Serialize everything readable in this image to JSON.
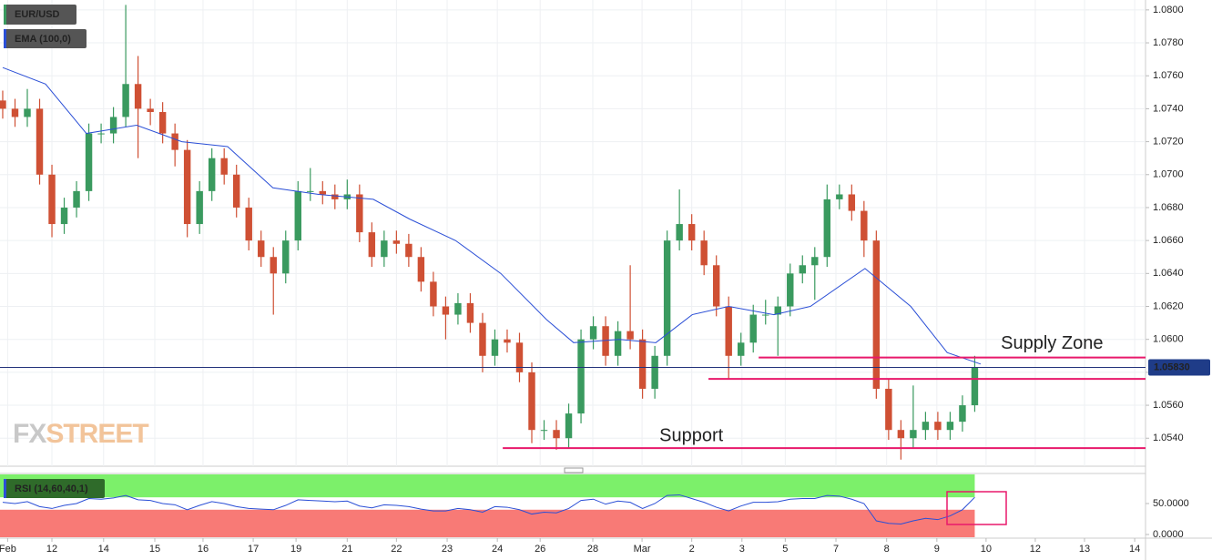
{
  "chart_data": [
    {
      "type": "candlestick",
      "title": "EUR/USD",
      "indicator": "EMA (100,0)",
      "logo": [
        "FX",
        "STREET"
      ],
      "annotations": [
        "Supply Zone",
        "Support"
      ],
      "up_color": "#3a9a5f",
      "down_color": "#cf5034",
      "x": [
        0,
        0.25,
        0.5,
        0.75,
        1,
        1.25,
        1.5,
        1.75,
        2,
        2.25,
        2.5,
        2.75,
        3,
        3.25,
        3.5,
        3.75,
        4,
        4.25,
        4.5,
        4.75,
        5,
        5.25,
        5.5,
        5.75,
        6,
        6.25,
        6.5,
        6.75,
        7,
        7.25,
        7.5,
        7.75,
        8,
        8.25,
        8.5,
        8.75,
        9,
        9.25,
        9.5,
        9.75,
        10,
        10.25,
        10.5,
        10.75,
        11,
        11.25,
        11.5,
        11.75,
        12,
        12.25,
        12.5,
        12.75,
        13,
        13.25,
        13.5,
        13.75,
        14,
        14.25,
        14.5,
        14.75,
        15,
        15.25,
        15.5,
        15.75,
        16,
        16.25,
        16.5,
        16.75,
        17,
        17.25,
        17.5,
        17.75,
        18,
        18.25,
        18.5,
        18.75,
        19,
        19.25,
        19.5,
        19.75
      ],
      "open": [
        1.0745,
        1.074,
        1.0735,
        1.074,
        1.07,
        1.067,
        1.068,
        1.069,
        1.0725,
        1.0725,
        1.0735,
        1.0755,
        1.074,
        1.0738,
        1.0725,
        1.0715,
        1.067,
        1.069,
        1.071,
        1.07,
        1.068,
        1.066,
        1.065,
        1.064,
        1.066,
        1.069,
        1.069,
        1.0688,
        1.0685,
        1.0688,
        1.0665,
        1.065,
        1.066,
        1.0658,
        1.065,
        1.0635,
        1.062,
        1.0615,
        1.0622,
        1.061,
        1.059,
        1.06,
        1.0598,
        1.058,
        1.0545,
        1.0545,
        1.054,
        1.0555,
        1.06,
        1.0608,
        1.059,
        1.0605,
        1.06,
        1.057,
        1.059,
        1.066,
        1.067,
        1.066,
        1.0645,
        1.062,
        1.059,
        1.0598,
        1.0615,
        1.0615,
        1.062,
        1.064,
        1.0645,
        1.065,
        1.0685,
        1.0688,
        1.0678,
        1.066,
        1.057,
        1.0545,
        1.054,
        1.0545,
        1.055,
        1.0545,
        1.055,
        1.056
      ],
      "high": [
        1.0751,
        1.0746,
        1.0752,
        1.0746,
        1.0706,
        1.0686,
        1.0696,
        1.0731,
        1.0731,
        1.0741,
        1.0803,
        1.0772,
        1.0746,
        1.0744,
        1.0731,
        1.0721,
        1.0696,
        1.0716,
        1.0716,
        1.0706,
        1.0686,
        1.0666,
        1.0656,
        1.0666,
        1.0696,
        1.0704,
        1.0696,
        1.0694,
        1.0697,
        1.0694,
        1.0671,
        1.0666,
        1.0666,
        1.0664,
        1.0656,
        1.0641,
        1.0626,
        1.0628,
        1.0628,
        1.0616,
        1.0606,
        1.0606,
        1.0604,
        1.0586,
        1.0551,
        1.0551,
        1.0561,
        1.0606,
        1.0614,
        1.0614,
        1.0611,
        1.0645,
        1.0606,
        1.0596,
        1.0666,
        1.0691,
        1.0676,
        1.0666,
        1.0651,
        1.0626,
        1.0604,
        1.0621,
        1.0624,
        1.0626,
        1.0646,
        1.0651,
        1.0656,
        1.0694,
        1.0694,
        1.0694,
        1.0684,
        1.0666,
        1.0576,
        1.0551,
        1.0572,
        1.0556,
        1.0556,
        1.0556,
        1.0566,
        1.059
      ],
      "low": [
        1.0734,
        1.0729,
        1.0729,
        1.0694,
        1.0662,
        1.0664,
        1.0674,
        1.0684,
        1.0719,
        1.0719,
        1.0729,
        1.071,
        1.073,
        1.0719,
        1.0705,
        1.0662,
        1.0664,
        1.0684,
        1.0694,
        1.0674,
        1.0654,
        1.0644,
        1.0615,
        1.0634,
        1.0654,
        1.0684,
        1.0682,
        1.0679,
        1.0679,
        1.0659,
        1.0644,
        1.0644,
        1.0652,
        1.0644,
        1.0629,
        1.0614,
        1.06,
        1.0609,
        1.0604,
        1.058,
        1.0584,
        1.0592,
        1.0574,
        1.0537,
        1.0539,
        1.0533,
        1.0534,
        1.0549,
        1.0594,
        1.0584,
        1.0584,
        1.0594,
        1.0564,
        1.0564,
        1.0584,
        1.0654,
        1.0654,
        1.0639,
        1.0614,
        1.0576,
        1.0584,
        1.0592,
        1.0609,
        1.059,
        1.0614,
        1.0634,
        1.0624,
        1.0644,
        1.0679,
        1.0672,
        1.065,
        1.0564,
        1.0539,
        1.0527,
        1.0534,
        1.0539,
        1.0539,
        1.0539,
        1.0544,
        1.0556
      ],
      "close": [
        1.074,
        1.0735,
        1.074,
        1.07,
        1.067,
        1.068,
        1.069,
        1.0725,
        1.0725,
        1.0735,
        1.0755,
        1.074,
        1.0738,
        1.0725,
        1.0715,
        1.067,
        1.069,
        1.071,
        1.07,
        1.068,
        1.066,
        1.065,
        1.064,
        1.066,
        1.069,
        1.069,
        1.0688,
        1.0685,
        1.0688,
        1.0665,
        1.065,
        1.066,
        1.0658,
        1.065,
        1.0635,
        1.062,
        1.0615,
        1.0622,
        1.061,
        1.059,
        1.06,
        1.0598,
        1.058,
        1.0545,
        1.0545,
        1.054,
        1.0555,
        1.06,
        1.0608,
        1.059,
        1.0605,
        1.06,
        1.057,
        1.059,
        1.066,
        1.067,
        1.066,
        1.0645,
        1.062,
        1.059,
        1.0598,
        1.0615,
        1.0615,
        1.062,
        1.064,
        1.0645,
        1.065,
        1.0685,
        1.0688,
        1.0678,
        1.066,
        1.057,
        1.0545,
        1.054,
        1.0545,
        1.055,
        1.0545,
        1.055,
        1.056,
        1.0583
      ],
      "ema": {
        "name": "EMA (100,0)",
        "color": "#2b4fd6",
        "x": [
          0,
          0.87,
          1.7,
          2.72,
          3.64,
          4.57,
          5.49,
          6.42,
          7.53,
          8.27,
          9.2,
          10.12,
          11.05,
          11.6,
          12.53,
          13.27,
          14.01,
          14.75,
          15.67,
          16.41,
          17.52,
          18.45,
          19.19,
          19.87
        ],
        "values": [
          1.0765,
          1.0755,
          1.0725,
          1.073,
          1.072,
          1.0717,
          1.0692,
          1.0688,
          1.0685,
          1.0673,
          1.066,
          1.064,
          1.0612,
          1.0598,
          1.06,
          1.0598,
          1.0615,
          1.062,
          1.0615,
          1.062,
          1.0643,
          1.062,
          1.0592,
          1.0585
        ]
      },
      "lines": [
        {
          "value": 1.0589,
          "x_start": 15.36,
          "color": "#e8196b"
        },
        {
          "value": 1.0576,
          "x_start": 14.34,
          "color": "#e8196b"
        },
        {
          "value": 1.0534,
          "x_start": 10.16,
          "color": "#e8196b"
        }
      ],
      "current_price": {
        "value": 1.0583,
        "label": "1.05830"
      },
      "xlim": [
        -0.055,
        23.22
      ],
      "ylim": [
        1.0523,
        1.0806
      ],
      "yticks": [
        {
          "value": 1.08,
          "label": "1.0800"
        },
        {
          "value": 1.078,
          "label": "1.0780"
        },
        {
          "value": 1.076,
          "label": "1.0760"
        },
        {
          "value": 1.074,
          "label": "1.0740"
        },
        {
          "value": 1.072,
          "label": "1.0720"
        },
        {
          "value": 1.07,
          "label": "1.0700"
        },
        {
          "value": 1.068,
          "label": "1.0680"
        },
        {
          "value": 1.066,
          "label": "1.0660"
        },
        {
          "value": 1.064,
          "label": "1.0640"
        },
        {
          "value": 1.062,
          "label": "1.0620"
        },
        {
          "value": 1.06,
          "label": "1.0600"
        },
        {
          "value": 1.058,
          "label": "1.0580"
        },
        {
          "value": 1.056,
          "label": "1.0560"
        },
        {
          "value": 1.054,
          "label": "1.0540"
        }
      ],
      "grid": true
    },
    {
      "type": "line",
      "title": "RSI (14,60,40,1)",
      "color": "#2b4fd6",
      "upper": 60,
      "lower": 40,
      "upper_color": "#7cf06a",
      "lower_color": "#f87a76",
      "x": [
        0,
        0.25,
        0.5,
        0.75,
        1,
        1.25,
        1.5,
        1.75,
        2,
        2.25,
        2.5,
        2.75,
        3,
        3.25,
        3.5,
        3.75,
        4,
        4.25,
        4.5,
        4.75,
        5,
        5.25,
        5.5,
        5.75,
        6,
        6.25,
        6.5,
        6.75,
        7,
        7.25,
        7.5,
        7.75,
        8,
        8.25,
        8.5,
        8.75,
        9,
        9.25,
        9.5,
        9.75,
        10,
        10.25,
        10.5,
        10.75,
        11,
        11.25,
        11.5,
        11.75,
        12,
        12.25,
        12.5,
        12.75,
        13,
        13.25,
        13.5,
        13.75,
        14,
        14.25,
        14.5,
        14.75,
        15,
        15.25,
        15.5,
        15.75,
        16,
        16.25,
        16.5,
        16.75,
        17,
        17.25,
        17.5,
        17.75,
        18,
        18.25,
        18.5,
        18.75,
        19,
        19.25,
        19.5,
        19.75
      ],
      "values": [
        52,
        50,
        53,
        45,
        42,
        47,
        50,
        58,
        57,
        59,
        63,
        56,
        55,
        50,
        48,
        40,
        47,
        53,
        50,
        45,
        42,
        41,
        40,
        47,
        56,
        55,
        54,
        53,
        54,
        46,
        43,
        48,
        47,
        45,
        41,
        38,
        38,
        42,
        40,
        36,
        45,
        44,
        40,
        33,
        36,
        35,
        42,
        55,
        57,
        49,
        54,
        52,
        42,
        50,
        63,
        64,
        58,
        52,
        44,
        38,
        46,
        52,
        52,
        53,
        57,
        58,
        58,
        63,
        62,
        57,
        50,
        22,
        18,
        17,
        22,
        26,
        24,
        30,
        40,
        60
      ],
      "xlim": [
        -0.055,
        23.22
      ],
      "ylim": [
        -4.4,
        97
      ],
      "yticks": [
        {
          "value": 50,
          "label": "50.0000"
        },
        {
          "value": 0,
          "label": "0.0000"
        }
      ],
      "xticks": [
        {
          "value": 0.1,
          "label": "Feb"
        },
        {
          "value": 1,
          "label": "12"
        },
        {
          "value": 2.05,
          "label": "14"
        },
        {
          "value": 3.09,
          "label": "15"
        },
        {
          "value": 4.07,
          "label": "16"
        },
        {
          "value": 5.09,
          "label": "17"
        },
        {
          "value": 5.96,
          "label": "19"
        },
        {
          "value": 7.0,
          "label": "21"
        },
        {
          "value": 8.0,
          "label": "22"
        },
        {
          "value": 9.03,
          "label": "23"
        },
        {
          "value": 10.05,
          "label": "24"
        },
        {
          "value": 10.92,
          "label": "26"
        },
        {
          "value": 11.99,
          "label": "28"
        },
        {
          "value": 12.99,
          "label": "Mar"
        },
        {
          "value": 14.0,
          "label": "2"
        },
        {
          "value": 15.02,
          "label": "3"
        },
        {
          "value": 15.9,
          "label": "5"
        },
        {
          "value": 16.93,
          "label": "7"
        },
        {
          "value": 17.96,
          "label": "8"
        },
        {
          "value": 18.98,
          "label": "9"
        },
        {
          "value": 19.98,
          "label": "10"
        },
        {
          "value": 20.98,
          "label": "12"
        },
        {
          "value": 21.98,
          "label": "13"
        },
        {
          "value": 23.0,
          "label": "14"
        }
      ]
    }
  ]
}
